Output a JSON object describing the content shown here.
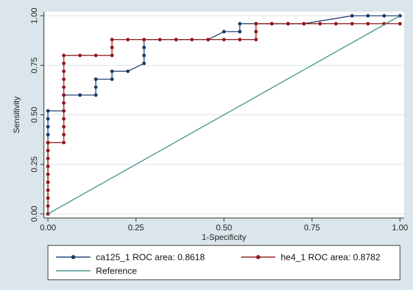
{
  "colors": {
    "background": "#dbe6ec",
    "plot_background": "#ffffff",
    "grid": "#dde3e7",
    "ca125": "#1a3a6e",
    "he4": "#8e1a1c",
    "reference": "#3d8c84"
  },
  "chart_data": {
    "type": "line",
    "title": "",
    "xlabel": "1-Specificity",
    "ylabel": "Sensitivity",
    "xlim": [
      0,
      1
    ],
    "ylim": [
      0,
      1
    ],
    "xticks": [
      "0.00",
      "0.25",
      "0.50",
      "0.75",
      "1.00"
    ],
    "yticks": [
      "0.00",
      "0.25",
      "0.50",
      "0.75",
      "1.00"
    ],
    "xtick_values": [
      0,
      0.25,
      0.5,
      0.75,
      1
    ],
    "ytick_values": [
      0,
      0.25,
      0.5,
      0.75,
      1
    ],
    "grid": true,
    "legend_position": "bottom",
    "series": [
      {
        "name": "ca125_1 ROC area: 0.8618",
        "color": "#1a3a6e",
        "marker": "circle",
        "x": [
          0,
          0,
          0,
          0,
          0,
          0,
          0.045,
          0.045,
          0.091,
          0.136,
          0.136,
          0.136,
          0.182,
          0.182,
          0.227,
          0.273,
          0.273,
          0.273,
          0.273,
          0.364,
          0.455,
          0.5,
          0.545,
          0.545,
          0.591,
          0.636,
          0.682,
          0.727,
          0.864,
          0.909,
          0.955,
          1
        ],
        "y": [
          0,
          0.36,
          0.4,
          0.44,
          0.48,
          0.52,
          0.52,
          0.6,
          0.6,
          0.6,
          0.64,
          0.68,
          0.68,
          0.72,
          0.72,
          0.76,
          0.8,
          0.84,
          0.88,
          0.88,
          0.88,
          0.92,
          0.92,
          0.96,
          0.96,
          0.96,
          0.96,
          0.96,
          1,
          1,
          1,
          1
        ]
      },
      {
        "name": "he4_1 ROC area: 0.8782",
        "color": "#8e1a1c",
        "marker": "circle",
        "x": [
          0,
          0,
          0,
          0,
          0,
          0,
          0,
          0,
          0,
          0,
          0,
          0.045,
          0.045,
          0.045,
          0.045,
          0.045,
          0.045,
          0.045,
          0.045,
          0.045,
          0.045,
          0.045,
          0.045,
          0.091,
          0.136,
          0.182,
          0.182,
          0.182,
          0.227,
          0.273,
          0.318,
          0.364,
          0.409,
          0.455,
          0.5,
          0.545,
          0.591,
          0.591,
          0.591,
          0.636,
          0.682,
          0.727,
          0.773,
          0.818,
          0.864,
          0.909,
          0.955,
          1
        ],
        "y": [
          0,
          0.04,
          0.08,
          0.12,
          0.16,
          0.2,
          0.24,
          0.28,
          0.32,
          0.36,
          0.36,
          0.36,
          0.4,
          0.44,
          0.48,
          0.52,
          0.56,
          0.6,
          0.64,
          0.68,
          0.72,
          0.76,
          0.8,
          0.8,
          0.8,
          0.8,
          0.84,
          0.88,
          0.88,
          0.88,
          0.88,
          0.88,
          0.88,
          0.88,
          0.88,
          0.88,
          0.88,
          0.92,
          0.96,
          0.96,
          0.96,
          0.96,
          0.96,
          0.96,
          0.96,
          0.96,
          0.96,
          0.96
        ]
      },
      {
        "name": "Reference",
        "color": "#3d8c84",
        "marker": "none",
        "x": [
          0,
          1
        ],
        "y": [
          0,
          1
        ]
      }
    ]
  },
  "legend": {
    "entries": [
      {
        "label": "ca125_1 ROC area: 0.8618",
        "color": "#1a3a6e",
        "marker": "circle"
      },
      {
        "label": "he4_1 ROC area: 0.8782",
        "color": "#8e1a1c",
        "marker": "circle"
      },
      {
        "label": "Reference",
        "color": "#3d8c84",
        "marker": "none"
      }
    ]
  }
}
